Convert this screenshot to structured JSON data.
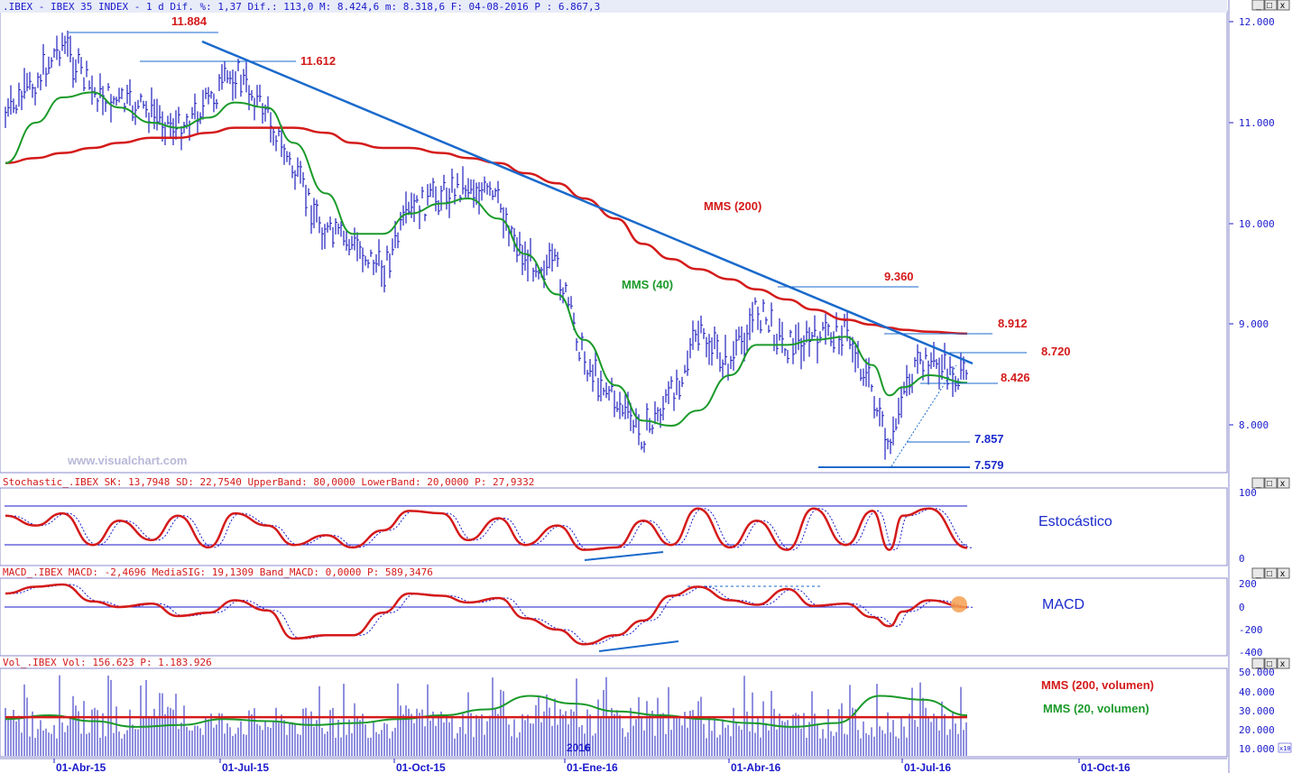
{
  "colors": {
    "price_bars": "#1f1fbf",
    "mms40": "#1a9a2a",
    "mms200": "#d41a1a",
    "trendline": "#1a6acc",
    "level_line": "#1a6acc",
    "level_label": "#d41a1a",
    "stoch_k": "#d41a1a",
    "macd": "#d41a1a",
    "volume": "#1f1fbf",
    "axis_text": "#1a1acc",
    "annotation_blue": "#1a2acc"
  },
  "panels": {
    "price": {
      "header": ".IBEX - IBEX 35 INDEX -  1 d Dif. %: 1,37 Dif.: 113,0 M: 8.424,6 m: 8.318,6 F: 04-08-2016 P : 6.867,3",
      "watermark": "www.visualchart.com",
      "y_ticks": [
        "12.000",
        "11.000",
        "10.000",
        "9.000",
        "8.000"
      ],
      "annotations": [
        "MMS (200)",
        "MMS (40)"
      ],
      "levels": [
        "11.884",
        "11.612",
        "9.360",
        "8.912",
        "8.720",
        "8.426",
        "7.857",
        "7.579"
      ]
    },
    "stochastic": {
      "header": "Stochastic_.IBEX SK: 13,7948 SD: 22,7540 UpperBand: 80,0000 LowerBand: 20,0000 P: 27,9332",
      "y_ticks": [
        "100",
        "0"
      ],
      "label": "Estocástico"
    },
    "macd": {
      "header": "MACD_.IBEX MACD: -2,4696 MediaSIG: 19,1309 Band_MACD: 0,0000 P: 589,3476",
      "y_ticks": [
        "200",
        "0",
        "-200",
        "-400"
      ],
      "label": "MACD"
    },
    "volume": {
      "header": "Vol_.IBEX Vol: 156.623 P: 1.183.926",
      "y_ticks": [
        "50.000",
        "40.000",
        "30.000",
        "20.000",
        "10.000"
      ],
      "scale_badge": "x10",
      "label_mms200": "MMS (200, volumen)",
      "label_mms20": "MMS (20, volumen)",
      "year_marker": "2016"
    }
  },
  "x_axis": {
    "ticks": [
      "01-Abr-15",
      "01-Jul-15",
      "01-Oct-15",
      "01-Ene-16",
      "01-Abr-16",
      "01-Jul-16",
      "01-Oct-16"
    ]
  },
  "window_buttons": [
    "_",
    "□",
    "x"
  ],
  "chart_data": [
    {
      "type": "line",
      "x": [
        "2015-03-16",
        "2015-04-01",
        "2015-04-15",
        "2015-05-01",
        "2015-05-15",
        "2015-06-01",
        "2015-06-15",
        "2015-07-01",
        "2015-07-15",
        "2015-08-01",
        "2015-08-15",
        "2015-09-01",
        "2015-09-15",
        "2015-10-01",
        "2015-10-15",
        "2015-11-01",
        "2015-11-15",
        "2015-12-01",
        "2015-12-15",
        "2016-01-01",
        "2016-01-15",
        "2016-02-01",
        "2016-02-15",
        "2016-03-01",
        "2016-03-15",
        "2016-04-01",
        "2016-04-15",
        "2016-05-01",
        "2016-05-15",
        "2016-06-01",
        "2016-06-15",
        "2016-06-24",
        "2016-07-01",
        "2016-07-15",
        "2016-08-04"
      ],
      "series": [
        {
          "name": "",
          "values": [
            11050,
            11400,
            11800,
            11300,
            11200,
            11100,
            10950,
            11200,
            11500,
            11100,
            10500,
            9900,
            9800,
            9550,
            10100,
            10300,
            10400,
            10200,
            9650,
            9550,
            8650,
            8250,
            7900,
            8300,
            8900,
            8600,
            9150,
            8800,
            8850,
            8950,
            8350,
            7650,
            8400,
            8650,
            8424
          ]
        },
        {
          "name": "MMS (40)",
          "values": [
            10600,
            11000,
            11250,
            11300,
            11150,
            11000,
            10950,
            11050,
            11200,
            11150,
            10800,
            10300,
            9900,
            9900,
            10100,
            10200,
            10250,
            10050,
            9700,
            9300,
            8850,
            8400,
            8050,
            8000,
            8150,
            8500,
            8800,
            8800,
            8850,
            8880,
            8600,
            8300,
            8380,
            8500,
            8426
          ]
        },
        {
          "name": "MMS (200)",
          "values": [
            10600,
            10650,
            10700,
            10750,
            10800,
            10850,
            10850,
            10900,
            10950,
            10950,
            10950,
            10900,
            10800,
            10750,
            10750,
            10700,
            10650,
            10600,
            10500,
            10400,
            10250,
            10050,
            9800,
            9650,
            9550,
            9450,
            9350,
            9250,
            9150,
            9050,
            9000,
            8970,
            8950,
            8930,
            8912
          ]
        }
      ],
      "ylim": [
        7400,
        12200
      ]
    },
    {
      "type": "line",
      "title": "Estocástico",
      "x": [
        "2015-03-16",
        "2015-04-01",
        "2015-04-15",
        "2015-05-01",
        "2015-05-15",
        "2015-06-01",
        "2015-06-15",
        "2015-07-01",
        "2015-07-15",
        "2015-08-01",
        "2015-08-15",
        "2015-09-01",
        "2015-09-15",
        "2015-10-01",
        "2015-10-15",
        "2015-11-01",
        "2015-11-15",
        "2015-12-01",
        "2015-12-15",
        "2016-01-01",
        "2016-01-15",
        "2016-02-01",
        "2016-02-15",
        "2016-03-01",
        "2016-03-15",
        "2016-04-01",
        "2016-04-15",
        "2016-05-01",
        "2016-05-15",
        "2016-06-01",
        "2016-06-15",
        "2016-06-24",
        "2016-07-01",
        "2016-07-15",
        "2016-08-04"
      ],
      "series": [
        {
          "name": "",
          "values": [
            80,
            60,
            85,
            20,
            70,
            30,
            80,
            15,
            85,
            60,
            20,
            40,
            15,
            50,
            90,
            85,
            30,
            75,
            20,
            60,
            10,
            15,
            70,
            20,
            95,
            15,
            70,
            10,
            95,
            20,
            90,
            10,
            80,
            95,
            14
          ]
        }
      ],
      "ylim": [
        0,
        100
      ],
      "bands": [
        20,
        80
      ]
    },
    {
      "type": "line",
      "title": "MACD",
      "x": [
        "2015-03-16",
        "2015-04-01",
        "2015-04-15",
        "2015-05-01",
        "2015-05-15",
        "2015-06-01",
        "2015-06-15",
        "2015-07-01",
        "2015-07-15",
        "2015-08-01",
        "2015-08-15",
        "2015-09-01",
        "2015-09-15",
        "2015-10-01",
        "2015-10-15",
        "2015-11-01",
        "2015-11-15",
        "2015-12-01",
        "2015-12-15",
        "2016-01-01",
        "2016-01-15",
        "2016-02-01",
        "2016-02-15",
        "2016-03-01",
        "2016-03-15",
        "2016-04-01",
        "2016-04-15",
        "2016-05-01",
        "2016-05-15",
        "2016-06-01",
        "2016-06-15",
        "2016-06-24",
        "2016-07-01",
        "2016-07-15",
        "2016-08-04"
      ],
      "series": [
        {
          "name": "",
          "values": [
            120,
            180,
            200,
            50,
            0,
            30,
            -80,
            -50,
            60,
            -30,
            -280,
            -250,
            -250,
            -50,
            120,
            100,
            40,
            80,
            -100,
            -200,
            -330,
            -250,
            -120,
            100,
            180,
            60,
            20,
            160,
            10,
            30,
            -90,
            -170,
            -40,
            60,
            -2
          ]
        }
      ],
      "ylim": [
        -450,
        220
      ]
    },
    {
      "type": "bar",
      "x_range": [
        "2015-03-16",
        "2016-08-04"
      ],
      "series": [
        {
          "name": "MMS (200, volumen)",
          "values": [
            29000,
            29000
          ]
        },
        {
          "name": "MMS (20, volumen)",
          "values": [
            28000,
            30000,
            27000,
            24000,
            25000,
            28000,
            27000,
            25000,
            26000,
            28000,
            30000,
            33000,
            40000,
            36000,
            32000,
            30000,
            28000,
            26000,
            24000,
            26000,
            40000,
            38000,
            30000
          ]
        }
      ],
      "ylim": [
        5000,
        52000
      ]
    }
  ]
}
